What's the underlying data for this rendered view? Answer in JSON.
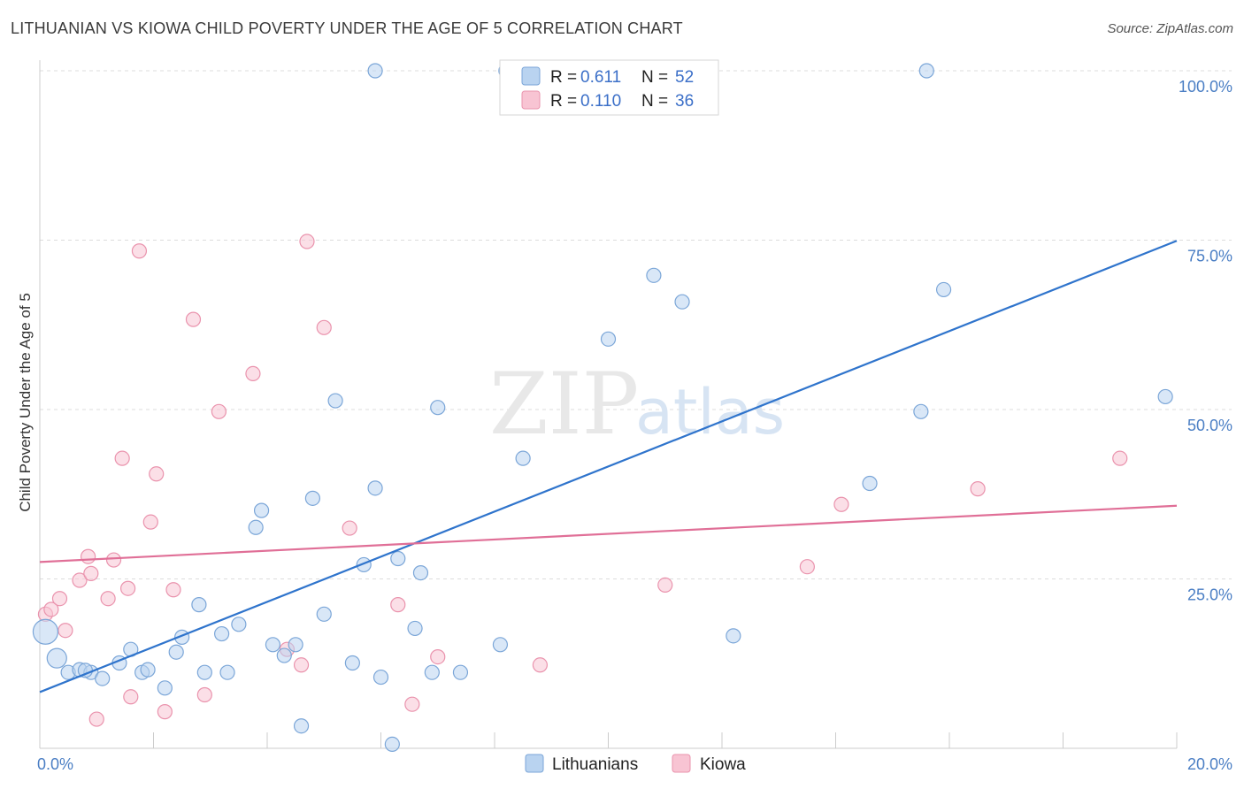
{
  "title": "LITHUANIAN VS KIOWA CHILD POVERTY UNDER THE AGE OF 5 CORRELATION CHART",
  "source": "Source: ZipAtlas.com",
  "watermark": {
    "part1": "ZIP",
    "part2": "atlas"
  },
  "colors": {
    "blue_fill": "#b9d3f0",
    "blue_stroke": "#7ba6d8",
    "blue_line": "#2f74cc",
    "pink_fill": "#f8c4d3",
    "pink_stroke": "#ea93ad",
    "pink_line": "#e06f97",
    "grid": "#dddddd",
    "tick_label": "#4a7ec4"
  },
  "legend": {
    "rows": [
      {
        "r_label": "R =",
        "r_value": "0.611",
        "n_label": "N =",
        "n_value": "52"
      },
      {
        "r_label": "R =",
        "r_value": "0.110",
        "n_label": "N =",
        "n_value": "36"
      }
    ]
  },
  "chart_data": {
    "type": "scatter",
    "ylabel": "Child Poverty Under the Age of 5",
    "xlim": [
      0,
      20
    ],
    "ylim": [
      0,
      100
    ],
    "x_tick_labels": [
      "0.0%",
      "20.0%"
    ],
    "y_tick_labels": [
      "25.0%",
      "50.0%",
      "75.0%",
      "100.0%"
    ],
    "y_ticks": [
      25,
      50,
      75,
      100
    ],
    "grid": true,
    "legend_position": "top-center",
    "series": [
      {
        "name": "Lithuanians",
        "color": "#b9d3f0",
        "trend": {
          "x": [
            0,
            20
          ],
          "y": [
            8.3,
            74.9
          ]
        },
        "points": [
          [
            0.1,
            17.2,
            14
          ],
          [
            0.3,
            13.3,
            11
          ],
          [
            0.5,
            11.2,
            8
          ],
          [
            0.7,
            11.6,
            8
          ],
          [
            0.9,
            11.2,
            8
          ],
          [
            1.1,
            10.3,
            8
          ],
          [
            1.4,
            12.6,
            8
          ],
          [
            1.6,
            14.6,
            8
          ],
          [
            1.8,
            11.2,
            8
          ],
          [
            1.9,
            11.6,
            8
          ],
          [
            2.2,
            8.9,
            8
          ],
          [
            2.4,
            14.2,
            8
          ],
          [
            2.5,
            16.4,
            8
          ],
          [
            2.8,
            21.2,
            8
          ],
          [
            2.9,
            11.2,
            8
          ],
          [
            3.2,
            16.9,
            8
          ],
          [
            3.3,
            11.2,
            8
          ],
          [
            3.5,
            18.3,
            8
          ],
          [
            3.8,
            32.6,
            8
          ],
          [
            3.9,
            35.1,
            8
          ],
          [
            4.1,
            15.3,
            8
          ],
          [
            4.3,
            13.7,
            8
          ],
          [
            4.5,
            15.3,
            8
          ],
          [
            4.6,
            3.3,
            8
          ],
          [
            4.8,
            36.9,
            8
          ],
          [
            5.0,
            19.8,
            8
          ],
          [
            5.2,
            51.3,
            8
          ],
          [
            5.5,
            12.6,
            8
          ],
          [
            5.7,
            27.1,
            8
          ],
          [
            5.9,
            38.4,
            8
          ],
          [
            6.0,
            10.5,
            8
          ],
          [
            6.2,
            0.6,
            8
          ],
          [
            6.3,
            28.0,
            8
          ],
          [
            6.6,
            17.7,
            8
          ],
          [
            6.7,
            25.9,
            8
          ],
          [
            6.9,
            11.2,
            8
          ],
          [
            7.0,
            50.3,
            8
          ],
          [
            7.4,
            11.2,
            8
          ],
          [
            8.1,
            15.3,
            8
          ],
          [
            8.5,
            42.8,
            8
          ],
          [
            10.0,
            60.4,
            8
          ],
          [
            10.8,
            69.8,
            8
          ],
          [
            11.3,
            65.9,
            8
          ],
          [
            12.2,
            16.6,
            8
          ],
          [
            14.6,
            39.1,
            8
          ],
          [
            15.5,
            49.7,
            8
          ],
          [
            15.9,
            67.7,
            8
          ],
          [
            19.8,
            51.9,
            8
          ],
          [
            5.9,
            100.0,
            8
          ],
          [
            8.2,
            100.0,
            8
          ],
          [
            15.6,
            100.0,
            8
          ],
          [
            0.8,
            11.5,
            8
          ]
        ]
      },
      {
        "name": "Kiowa",
        "color": "#f8c4d3",
        "trend": {
          "x": [
            0,
            20
          ],
          "y": [
            27.5,
            35.8
          ]
        },
        "points": [
          [
            0.1,
            19.8,
            8
          ],
          [
            0.2,
            20.5,
            8
          ],
          [
            0.35,
            22.1,
            8
          ],
          [
            0.45,
            17.4,
            8
          ],
          [
            0.7,
            24.8,
            8
          ],
          [
            0.85,
            28.3,
            8
          ],
          [
            0.9,
            25.8,
            8
          ],
          [
            1.0,
            4.3,
            8
          ],
          [
            1.2,
            22.1,
            8
          ],
          [
            1.3,
            27.8,
            8
          ],
          [
            1.45,
            42.8,
            8
          ],
          [
            1.55,
            23.6,
            8
          ],
          [
            1.6,
            7.6,
            8
          ],
          [
            1.75,
            73.4,
            8
          ],
          [
            1.95,
            33.4,
            8
          ],
          [
            2.05,
            40.5,
            8
          ],
          [
            2.2,
            5.4,
            8
          ],
          [
            2.35,
            23.4,
            8
          ],
          [
            2.7,
            63.3,
            8
          ],
          [
            2.9,
            7.9,
            8
          ],
          [
            3.15,
            49.7,
            8
          ],
          [
            3.75,
            55.3,
            8
          ],
          [
            4.35,
            14.6,
            8
          ],
          [
            4.6,
            12.3,
            8
          ],
          [
            4.7,
            74.8,
            8
          ],
          [
            5.0,
            62.1,
            8
          ],
          [
            5.45,
            32.5,
            8
          ],
          [
            6.3,
            21.2,
            8
          ],
          [
            6.55,
            6.5,
            8
          ],
          [
            7.0,
            13.5,
            8
          ],
          [
            8.8,
            12.3,
            8
          ],
          [
            11.0,
            24.1,
            8
          ],
          [
            13.5,
            26.8,
            8
          ],
          [
            14.1,
            36.0,
            8
          ],
          [
            16.5,
            38.3,
            8
          ],
          [
            19.0,
            42.8,
            8
          ]
        ]
      }
    ]
  }
}
